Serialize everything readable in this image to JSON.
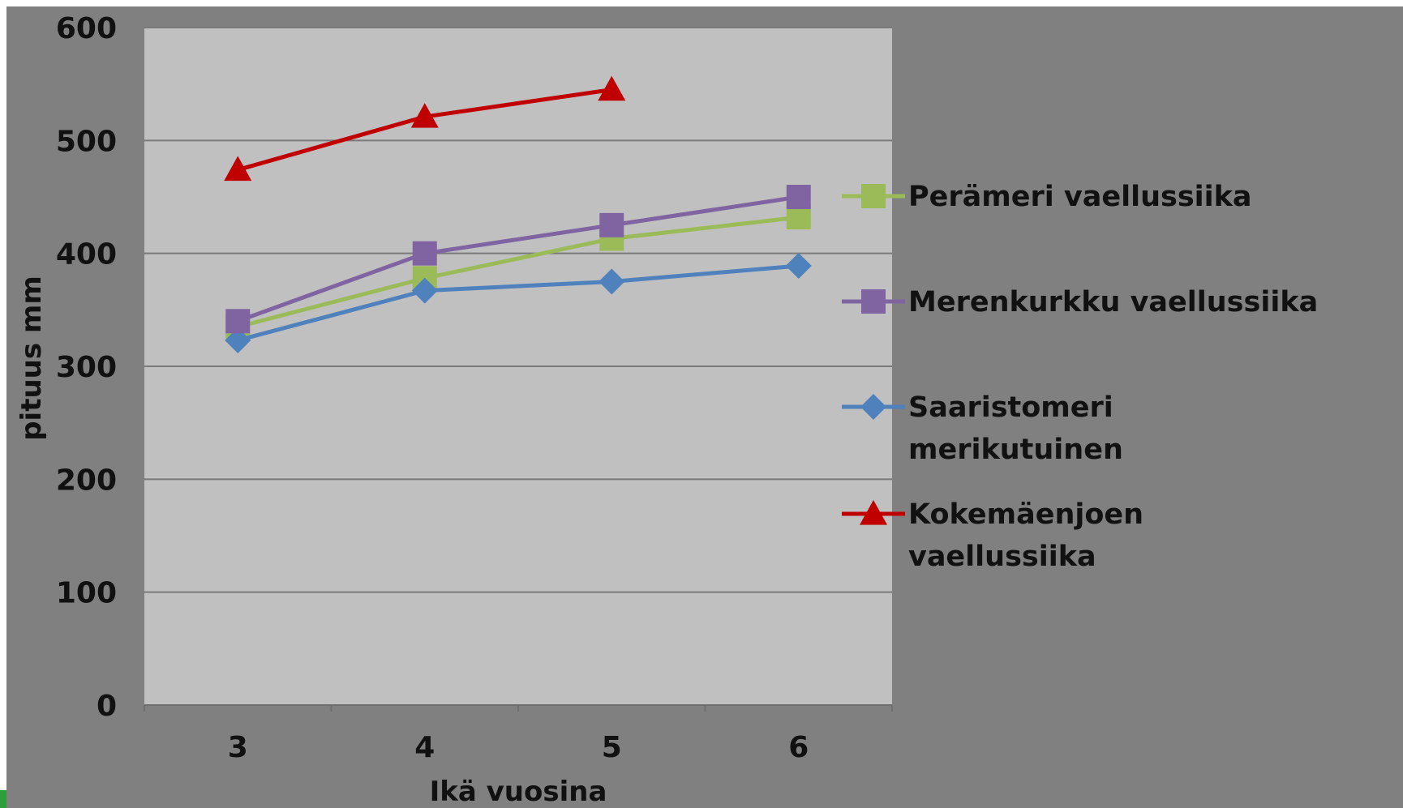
{
  "chart_data": {
    "type": "line",
    "title": "",
    "xlabel": "Ikä vuosina",
    "ylabel": "pituus mm",
    "x": [
      3,
      4,
      5,
      6
    ],
    "ylim": [
      0,
      600
    ],
    "yticks": [
      0,
      100,
      200,
      300,
      400,
      500,
      600
    ],
    "grid": true,
    "legend_position": "right",
    "series": [
      {
        "name": "Perämeri vaellussiika",
        "values": [
          335,
          378,
          413,
          432
        ],
        "color": "#9bbb59",
        "marker": "square"
      },
      {
        "name": "Merenkurkku vaellussiika",
        "values": [
          340,
          400,
          425,
          450
        ],
        "color": "#8064a2",
        "marker": "square"
      },
      {
        "name": "Saaristomeri merikutuinen",
        "values": [
          323,
          367,
          375,
          389
        ],
        "color": "#4f81bd",
        "marker": "diamond"
      },
      {
        "name": "Kokemäenjoen vaellussiika",
        "values": [
          474,
          521,
          545,
          null
        ],
        "color": "#c00000",
        "marker": "triangle"
      }
    ],
    "legend_lines": [
      [
        "Perämeri vaellussiika"
      ],
      [
        "Merenkurkku vaellussiika"
      ],
      [
        "Saaristomeri",
        "merikutuinen"
      ],
      [
        "Kokemäenjoen",
        "vaellussiika"
      ]
    ],
    "colors": {
      "frame": "#808080",
      "plot_area": "#c0c0c0",
      "gridline": "#7a7a7a"
    }
  }
}
